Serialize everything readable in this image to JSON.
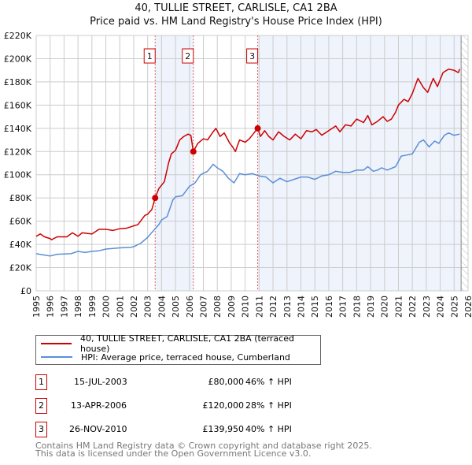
{
  "chart_data": {
    "type": "line",
    "title": "40, TULLIE STREET, CARLISLE, CA1 2BA",
    "subtitle": "Price paid vs. HM Land Registry's House Price Index (HPI)",
    "xlim": [
      1995,
      2026
    ],
    "ylim": [
      0,
      220000
    ],
    "x_ticks": [
      "1995",
      "1996",
      "1997",
      "1998",
      "1999",
      "2000",
      "2001",
      "2002",
      "2003",
      "2004",
      "2005",
      "2006",
      "2007",
      "2008",
      "2009",
      "2010",
      "2011",
      "2012",
      "2013",
      "2014",
      "2015",
      "2016",
      "2017",
      "2018",
      "2019",
      "2020",
      "2021",
      "2022",
      "2023",
      "2024",
      "2025",
      "2026"
    ],
    "y_ticks": [
      "£0",
      "£20K",
      "£40K",
      "£60K",
      "£80K",
      "£100K",
      "£120K",
      "£140K",
      "£160K",
      "£180K",
      "£200K",
      "£220K"
    ],
    "grid": true,
    "shaded_ranges": [
      [
        2003.54,
        2006.28
      ],
      [
        2010.9,
        2025.5
      ]
    ],
    "forecast_hatch_from": 2025.5,
    "series": [
      {
        "name": "40, TULLIE STREET, CARLISLE, CA1 2BA (terraced house)",
        "color": "#cc0000",
        "points": [
          [
            1995,
            47
          ],
          [
            1995.3,
            49
          ],
          [
            1995.6,
            46.5
          ],
          [
            1996,
            45
          ],
          [
            1996.1,
            44
          ],
          [
            1996.5,
            46.5
          ],
          [
            1997.2,
            46.5
          ],
          [
            1997.6,
            50
          ],
          [
            1998,
            47
          ],
          [
            1998.3,
            50
          ],
          [
            1999,
            49
          ],
          [
            1999.5,
            53
          ],
          [
            2000,
            53
          ],
          [
            2000.5,
            52
          ],
          [
            2001,
            53.5
          ],
          [
            2001.5,
            54
          ],
          [
            2002,
            56
          ],
          [
            2002.3,
            57
          ],
          [
            2002.8,
            65
          ],
          [
            2003,
            66
          ],
          [
            2003.3,
            70
          ],
          [
            2003.54,
            80
          ],
          [
            2003.8,
            88
          ],
          [
            2004.2,
            94
          ],
          [
            2004.5,
            110
          ],
          [
            2004.7,
            118
          ],
          [
            2005,
            121
          ],
          [
            2005.3,
            130
          ],
          [
            2005.6,
            133
          ],
          [
            2005.9,
            135
          ],
          [
            2006.1,
            134
          ],
          [
            2006.28,
            120
          ],
          [
            2006.6,
            127
          ],
          [
            2007,
            131
          ],
          [
            2007.3,
            130
          ],
          [
            2007.7,
            137
          ],
          [
            2007.9,
            140
          ],
          [
            2008.2,
            133
          ],
          [
            2008.5,
            136
          ],
          [
            2008.9,
            127
          ],
          [
            2009.1,
            124
          ],
          [
            2009.3,
            120
          ],
          [
            2009.6,
            130
          ],
          [
            2010,
            128
          ],
          [
            2010.3,
            131
          ],
          [
            2010.9,
            140
          ],
          [
            2011.1,
            133
          ],
          [
            2011.4,
            138
          ],
          [
            2011.7,
            133
          ],
          [
            2012,
            130
          ],
          [
            2012.4,
            137
          ],
          [
            2012.8,
            133
          ],
          [
            2013.2,
            130
          ],
          [
            2013.6,
            135
          ],
          [
            2014,
            131
          ],
          [
            2014.4,
            138
          ],
          [
            2014.8,
            137
          ],
          [
            2015.1,
            139
          ],
          [
            2015.5,
            134
          ],
          [
            2016,
            138
          ],
          [
            2016.5,
            142
          ],
          [
            2016.8,
            137
          ],
          [
            2017.2,
            143
          ],
          [
            2017.6,
            142
          ],
          [
            2018,
            148
          ],
          [
            2018.5,
            145
          ],
          [
            2018.8,
            151
          ],
          [
            2019.1,
            143
          ],
          [
            2019.5,
            146
          ],
          [
            2019.9,
            150
          ],
          [
            2020.2,
            146
          ],
          [
            2020.5,
            148
          ],
          [
            2020.8,
            154
          ],
          [
            2021,
            160
          ],
          [
            2021.4,
            165
          ],
          [
            2021.7,
            163
          ],
          [
            2022,
            170
          ],
          [
            2022.4,
            183
          ],
          [
            2022.8,
            175
          ],
          [
            2023.1,
            171
          ],
          [
            2023.5,
            183
          ],
          [
            2023.8,
            176
          ],
          [
            2024.2,
            188
          ],
          [
            2024.6,
            191
          ],
          [
            2025,
            190
          ],
          [
            2025.3,
            188
          ],
          [
            2025.4,
            191
          ]
        ]
      },
      {
        "name": "HPI: Average price, terraced house, Cumberland",
        "color": "#5b8fd4",
        "points": [
          [
            1995,
            32
          ],
          [
            1995.5,
            31
          ],
          [
            1996,
            30
          ],
          [
            1996.5,
            31.5
          ],
          [
            1997.5,
            32
          ],
          [
            1998,
            34
          ],
          [
            1998.5,
            33
          ],
          [
            1999,
            34
          ],
          [
            1999.5,
            34.5
          ],
          [
            2000,
            36
          ],
          [
            2001,
            37
          ],
          [
            2001.8,
            37.5
          ],
          [
            2002,
            38
          ],
          [
            2002.5,
            41
          ],
          [
            2003,
            46
          ],
          [
            2003.5,
            53
          ],
          [
            2003.8,
            57
          ],
          [
            2004,
            61
          ],
          [
            2004.4,
            64
          ],
          [
            2004.8,
            78
          ],
          [
            2005,
            81
          ],
          [
            2005.5,
            82
          ],
          [
            2006,
            90
          ],
          [
            2006.4,
            93
          ],
          [
            2006.8,
            100
          ],
          [
            2007.3,
            103
          ],
          [
            2007.7,
            109
          ],
          [
            2008,
            106
          ],
          [
            2008.4,
            103
          ],
          [
            2008.8,
            97
          ],
          [
            2009.2,
            93
          ],
          [
            2009.6,
            101
          ],
          [
            2010,
            100
          ],
          [
            2010.5,
            101
          ],
          [
            2011,
            99
          ],
          [
            2011.5,
            98
          ],
          [
            2012,
            93
          ],
          [
            2012.5,
            97
          ],
          [
            2013,
            94
          ],
          [
            2013.5,
            96
          ],
          [
            2014,
            98
          ],
          [
            2014.5,
            98
          ],
          [
            2015,
            96
          ],
          [
            2015.5,
            99
          ],
          [
            2016,
            100
          ],
          [
            2016.5,
            103
          ],
          [
            2017,
            102
          ],
          [
            2017.5,
            102
          ],
          [
            2018,
            104
          ],
          [
            2018.5,
            104
          ],
          [
            2018.8,
            107
          ],
          [
            2019.2,
            103
          ],
          [
            2019.5,
            104
          ],
          [
            2019.8,
            106
          ],
          [
            2020.2,
            104
          ],
          [
            2020.8,
            107
          ],
          [
            2021.2,
            116
          ],
          [
            2021.6,
            117
          ],
          [
            2022,
            118
          ],
          [
            2022.5,
            128
          ],
          [
            2022.8,
            130
          ],
          [
            2023.2,
            124
          ],
          [
            2023.6,
            129
          ],
          [
            2023.9,
            127
          ],
          [
            2024.3,
            134
          ],
          [
            2024.6,
            136
          ],
          [
            2025,
            134
          ],
          [
            2025.4,
            135
          ]
        ]
      }
    ],
    "sales": [
      {
        "label": "1",
        "x": 2003.54,
        "value": 80000
      },
      {
        "label": "2",
        "x": 2006.28,
        "value": 120000
      },
      {
        "label": "3",
        "x": 2010.9,
        "value": 139950
      }
    ]
  },
  "legend": {
    "items": [
      "40, TULLIE STREET, CARLISLE, CA1 2BA (terraced house)",
      "HPI: Average price, terraced house, Cumberland"
    ]
  },
  "table": [
    {
      "num": "1",
      "date": "15-JUL-2003",
      "price": "£80,000",
      "hpi": "46% ↑ HPI"
    },
    {
      "num": "2",
      "date": "13-APR-2006",
      "price": "£120,000",
      "hpi": "28% ↑ HPI"
    },
    {
      "num": "3",
      "date": "26-NOV-2010",
      "price": "£139,950",
      "hpi": "40% ↑ HPI"
    }
  ],
  "footer": [
    "Contains HM Land Registry data © Crown copyright and database right 2025.",
    "This data is licensed under the Open Government Licence v3.0."
  ]
}
